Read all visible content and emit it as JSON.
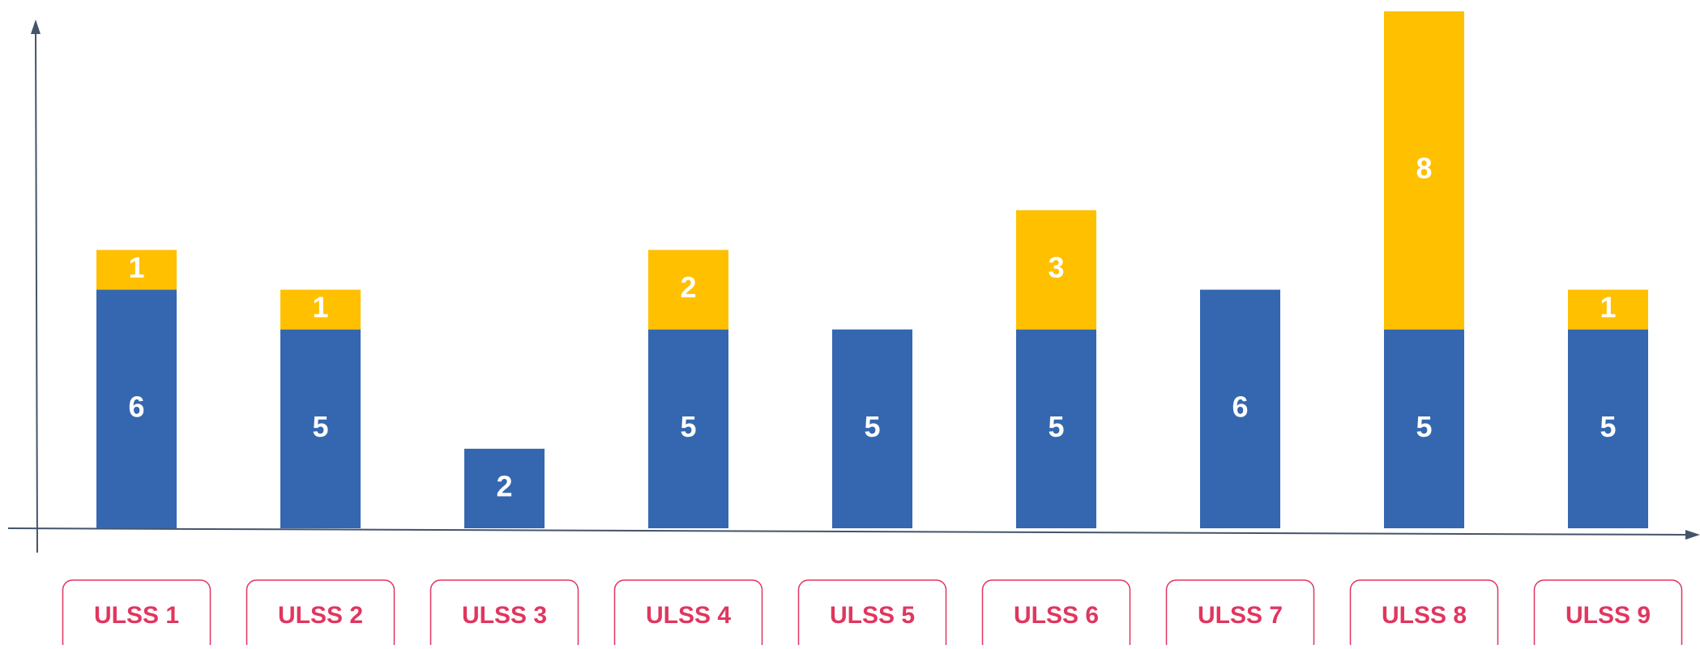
{
  "chart_data": {
    "type": "bar",
    "stacked": true,
    "categories": [
      "ULSS 1",
      "ULSS 2",
      "ULSS 3",
      "ULSS 4",
      "ULSS 5",
      "ULSS 6",
      "ULSS 7",
      "ULSS 8",
      "ULSS 9"
    ],
    "series": [
      {
        "color": "#3567b0",
        "values": [
          6,
          5,
          2,
          5,
          5,
          5,
          6,
          5,
          5
        ]
      },
      {
        "color": "#ffc000",
        "values": [
          1,
          1,
          null,
          2,
          null,
          3,
          null,
          8,
          1
        ]
      }
    ]
  }
}
